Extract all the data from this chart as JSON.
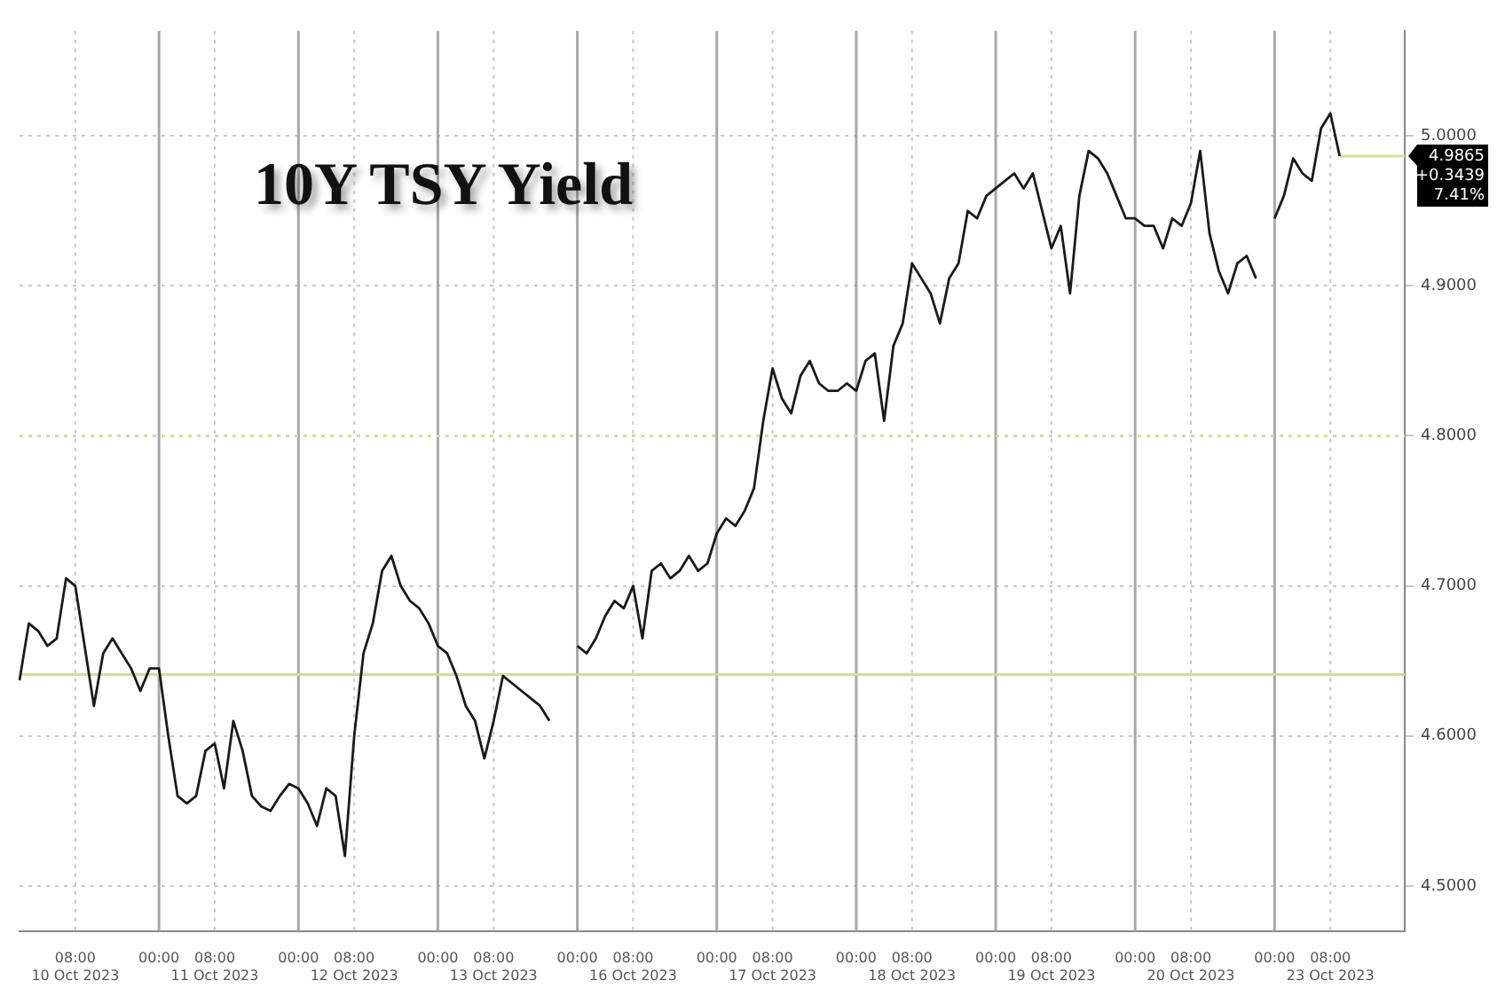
{
  "chart_data": {
    "type": "line",
    "title": "10Y TSY Yield",
    "categories": [
      null,
      null,
      null,
      null,
      null,
      null,
      "08:00\n10 Oct 2023",
      null,
      null,
      null,
      null,
      null,
      null,
      null,
      null,
      "00:00",
      null,
      null,
      null,
      null,
      null,
      "08:00\n11 Oct 2023",
      null,
      null,
      null,
      null,
      null,
      null,
      null,
      null,
      "00:00",
      null,
      null,
      null,
      null,
      null,
      "08:00\n12 Oct 2023",
      null,
      null,
      null,
      null,
      null,
      null,
      null,
      null,
      "00:00",
      null,
      null,
      null,
      null,
      null,
      "08:00\n13 Oct 2023",
      null,
      null,
      null,
      null,
      null,
      null,
      null,
      null,
      "00:00",
      null,
      null,
      null,
      null,
      null,
      "08:00\n16 Oct 2023",
      null,
      null,
      null,
      null,
      null,
      null,
      null,
      null,
      "00:00",
      null,
      null,
      null,
      null,
      null,
      "08:00\n17 Oct 2023",
      null,
      null,
      null,
      null,
      null,
      null,
      null,
      null,
      "00:00",
      null,
      null,
      null,
      null,
      null,
      "08:00\n18 Oct 2023",
      null,
      null,
      null,
      null,
      null,
      null,
      null,
      null,
      "00:00",
      null,
      null,
      null,
      null,
      null,
      "08:00\n19 Oct 2023",
      null,
      null,
      null,
      null,
      null,
      null,
      null,
      null,
      "00:00",
      null,
      null,
      null,
      null,
      null,
      "08:00\n20 Oct 2023",
      null,
      null,
      null,
      null,
      null,
      null,
      null,
      null,
      "00:00",
      null,
      null,
      null,
      null,
      null,
      "08:00\n23 Oct 2023",
      null,
      null,
      null,
      null,
      null,
      null,
      null,
      null
    ],
    "series": [
      {
        "color": "#1a1a1a",
        "values": [
          4.637,
          4.675,
          4.67,
          4.66,
          4.665,
          4.705,
          4.7,
          4.66,
          4.62,
          4.655,
          4.665,
          4.655,
          4.645,
          4.63,
          4.645,
          4.645,
          4.6,
          4.56,
          4.555,
          4.56,
          4.59,
          4.595,
          4.565,
          4.61,
          4.59,
          4.56,
          4.553,
          4.55,
          4.56,
          4.568,
          4.565,
          4.555,
          4.54,
          4.565,
          4.56,
          4.52,
          4.6,
          4.655,
          4.675,
          4.71,
          4.72,
          4.7,
          4.69,
          4.685,
          4.675,
          4.66,
          4.655,
          4.64,
          4.62,
          4.61,
          4.585,
          4.61,
          4.64,
          4.635,
          4.63,
          4.625,
          4.62,
          4.61,
          null,
          null,
          4.66,
          4.655,
          4.665,
          4.68,
          4.69,
          4.685,
          4.7,
          4.665,
          4.71,
          4.715,
          4.705,
          4.71,
          4.72,
          4.71,
          4.715,
          4.735,
          4.745,
          4.74,
          4.75,
          4.765,
          4.81,
          4.845,
          4.825,
          4.815,
          4.84,
          4.85,
          4.835,
          4.83,
          4.83,
          4.835,
          4.83,
          4.85,
          4.855,
          4.81,
          4.86,
          4.875,
          4.915,
          4.905,
          4.895,
          4.875,
          4.905,
          4.915,
          4.95,
          4.945,
          4.96,
          4.965,
          4.97,
          4.975,
          4.965,
          4.975,
          4.95,
          4.925,
          4.94,
          4.895,
          4.96,
          4.99,
          4.985,
          4.975,
          4.96,
          4.945,
          4.945,
          4.94,
          4.94,
          4.925,
          4.945,
          4.94,
          4.955,
          4.99,
          4.935,
          4.91,
          4.895,
          4.915,
          4.92,
          4.905,
          null,
          4.945,
          4.96,
          4.985,
          4.975,
          4.97,
          5.005,
          5.015,
          4.9865,
          null,
          null,
          null,
          null,
          null,
          null,
          null
        ]
      }
    ],
    "ylim": [
      4.47,
      5.07
    ],
    "yticks": [
      {
        "value": 4.5,
        "label": "4.5000"
      },
      {
        "value": 4.6,
        "label": "4.6000"
      },
      {
        "value": 4.7,
        "label": "4.7000"
      },
      {
        "value": 4.8,
        "label": "4.8000"
      },
      {
        "value": 4.9,
        "label": "4.9000"
      },
      {
        "value": 5.0,
        "label": "5.0000"
      }
    ],
    "ref_lines": [
      {
        "axis": "y",
        "value": 4.641,
        "color": "#d6dc9a",
        "line_style": "solid"
      },
      {
        "axis": "y",
        "value": 4.8,
        "color": "#d6dc9a",
        "line_style": "dotted"
      },
      {
        "axis": "y",
        "value": 4.9865,
        "label": "4.9865",
        "color": "#d6dc9a",
        "line_style": "solid"
      }
    ],
    "annotations": [
      "+0.3439",
      "7.41%"
    ],
    "grid": true,
    "legend": false,
    "marker": "none",
    "line_style": "solid"
  }
}
